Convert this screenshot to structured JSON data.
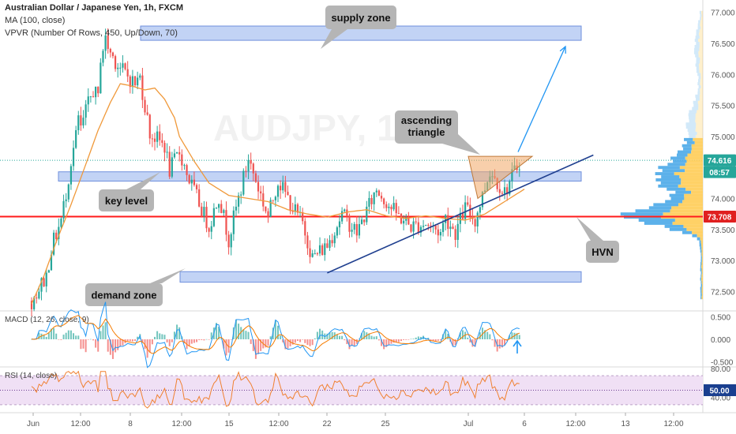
{
  "header": {
    "symbol_title": "Australian Dollar / Japanese Yen, 1h, FXCM",
    "ma_label": "MA (100, close)",
    "vpvr_label": "VPVR (Number Of Rows, 450, Up/Down, 70)"
  },
  "watermark": "AUDJPY, 1h",
  "colors": {
    "bull": "#26a69a",
    "bear": "#ef5350",
    "zone_fill": "#aec4f2",
    "zone_stroke": "#6f8fdc",
    "ma": "#f0993a",
    "trendline": "#1f3f8f",
    "projection": "#2196f3",
    "hvn_line": "#ff1a1a",
    "callout": "#b5b5b5",
    "vpvr_up": "#4aa8e8",
    "vpvr_down": "#ffcc55",
    "macd_line": "#2196f3",
    "signal_line": "#f57c00",
    "rsi_line": "#f08030",
    "rsi_band": "#f0e0f5",
    "price_badge": "#26a69a",
    "timer_badge": "#26a69a",
    "hvn_badge": "#e02020",
    "rsi_badge": "#1a3f8f"
  },
  "annotations": {
    "supply_zone": "supply zone",
    "key_level": "key level",
    "demand_zone": "demand zone",
    "ascending_triangle_1": "ascending",
    "ascending_triangle_2": "triangle",
    "hvn": "HVN"
  },
  "price_labels": {
    "current_price": "74.616",
    "countdown": "08:57",
    "hvn_price": "73.708"
  },
  "chart_data": [
    {
      "type": "candlestick",
      "title": "Australian Dollar / Japanese Yen, 1h, FXCM",
      "y_axis": {
        "range": [
          72.2,
          77.2
        ],
        "ticks": [
          "72.500",
          "73.000",
          "73.500",
          "74.000",
          "74.500",
          "75.000",
          "75.500",
          "76.000",
          "76.500",
          "77.000"
        ]
      },
      "x_axis": {
        "ticks": [
          "Jun",
          "12:00",
          "8",
          "12:00",
          "15",
          "12:00",
          "22",
          "25",
          "Jul",
          "6",
          "12:00",
          "13",
          "12:00"
        ]
      },
      "price_series_anchors": {
        "date_positions": [
          0,
          6,
          8,
          12,
          14,
          16,
          18,
          19,
          20,
          22,
          25,
          27,
          28,
          30,
          32,
          36,
          42,
          44,
          48,
          54,
          56,
          60,
          64,
          72,
          76,
          80,
          88,
          96,
          100,
          106,
          110,
          114,
          120,
          126,
          132,
          140,
          148,
          154,
          160,
          166,
          168,
          172,
          176,
          180,
          186,
          192,
          198
        ],
        "close": [
          72.35,
          72.75,
          73.2,
          73.65,
          74.1,
          74.6,
          75.0,
          75.3,
          75.1,
          75.4,
          75.75,
          75.6,
          76.3,
          76.55,
          76.35,
          76.1,
          75.85,
          75.95,
          75.05,
          74.85,
          74.45,
          74.75,
          74.3,
          73.55,
          74.05,
          73.35,
          74.65,
          73.7,
          74.3,
          73.85,
          73.6,
          73.05,
          73.25,
          73.75,
          73.45,
          74.15,
          73.75,
          73.55,
          73.6,
          73.45,
          73.7,
          73.45,
          73.85,
          73.65,
          74.45,
          74.1,
          74.6
        ]
      },
      "zones": [
        {
          "label": "supply zone",
          "from": 76.55,
          "to": 76.78
        },
        {
          "label": "key level",
          "from": 74.28,
          "to": 74.43
        },
        {
          "label": "demand zone",
          "from": 72.65,
          "to": 72.82
        }
      ],
      "horizontal_levels": [
        {
          "label": "HVN",
          "value": 73.708
        }
      ],
      "current_price": 74.616,
      "moving_average": {
        "name": "MA (100, close)",
        "date_positions": [
          0,
          5,
          10,
          16,
          22,
          27,
          32,
          36,
          40,
          46,
          50,
          54,
          58,
          60,
          66,
          72,
          80,
          88,
          96,
          104,
          112,
          120,
          128,
          136,
          144,
          152,
          160,
          168,
          176,
          184,
          190,
          196,
          200
        ],
        "values": [
          72.3,
          72.75,
          73.3,
          73.9,
          74.55,
          75.1,
          75.55,
          75.85,
          75.82,
          75.75,
          75.78,
          75.6,
          75.3,
          75.0,
          74.6,
          74.25,
          74.05,
          74.0,
          73.95,
          73.82,
          73.75,
          73.7,
          73.78,
          73.82,
          73.72,
          73.68,
          73.72,
          73.68,
          73.65,
          73.75,
          73.9,
          74.05,
          74.15
        ]
      },
      "ascending_trendline": {
        "from": {
          "date_position": 120,
          "price": 72.8
        },
        "to": {
          "date_position": 228,
          "price": 74.7
        }
      },
      "ascending_triangle": {
        "top": 74.68,
        "apex_date_position": 199,
        "bottom_left": 74.0
      },
      "projection_arrow": {
        "from": {
          "date_position": 198,
          "price": 74.75
        },
        "to": {
          "date_position": 212,
          "price": 76.45
        }
      }
    },
    {
      "type": "line",
      "title": "MACD (12, 26, close, 9)",
      "y_axis": {
        "range": [
          -0.6,
          0.6
        ],
        "ticks": [
          "0.500",
          "0.000",
          "-0.500"
        ]
      },
      "series": [
        {
          "name": "MACD"
        },
        {
          "name": "Signal"
        }
      ],
      "histogram": true
    },
    {
      "type": "line",
      "title": "RSI (14, close)",
      "y_axis": {
        "range": [
          20,
          80
        ],
        "ticks": [
          "80.00",
          "40.00"
        ]
      },
      "band": [
        30,
        70
      ],
      "midline": 50,
      "badge_value": "50.00"
    }
  ]
}
